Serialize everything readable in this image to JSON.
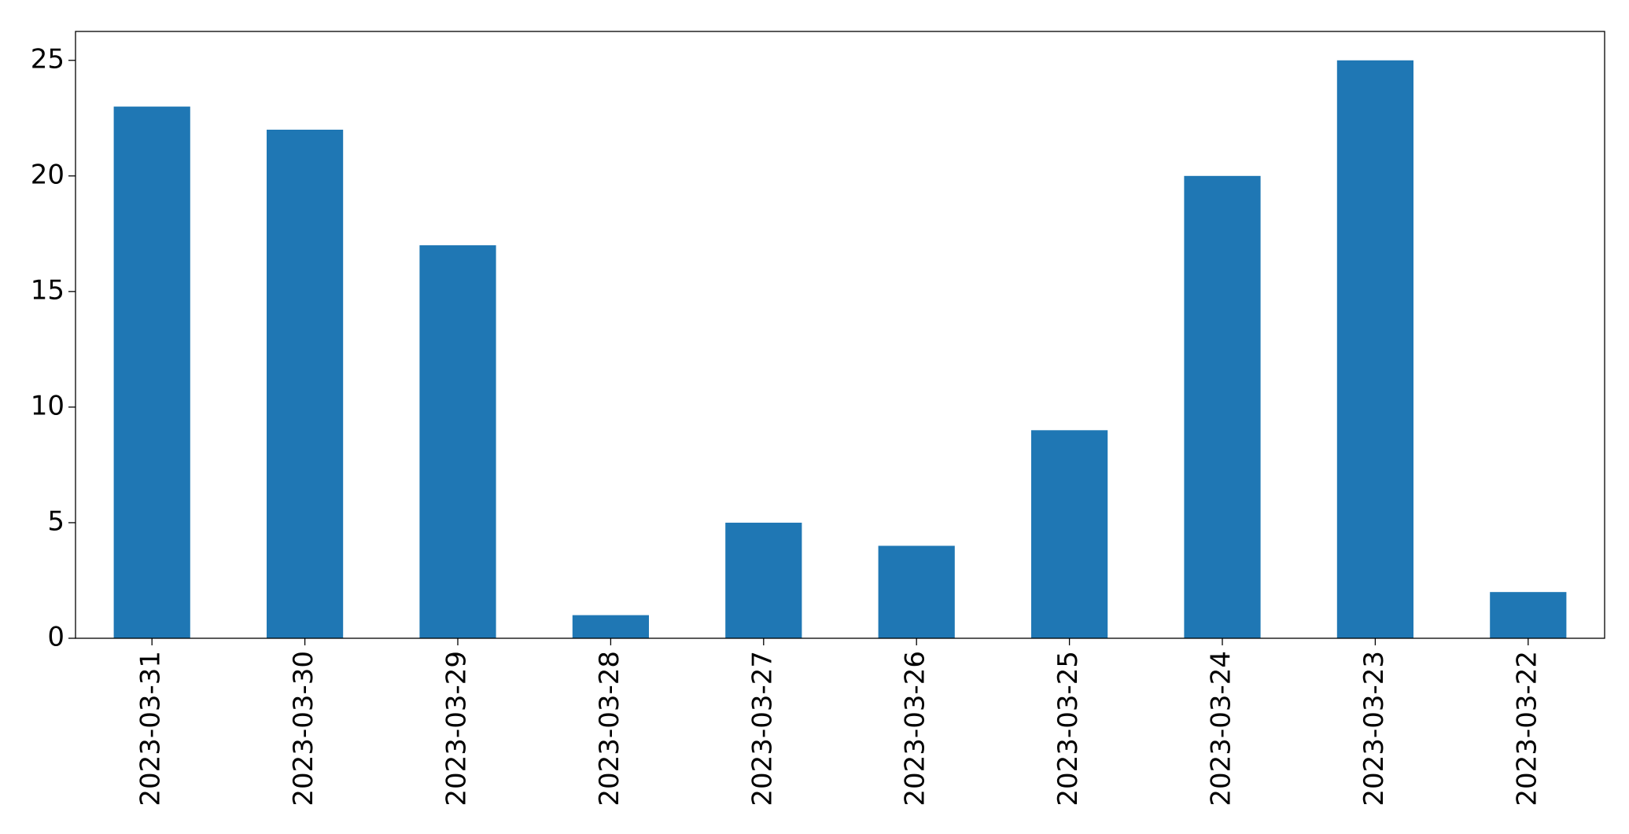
{
  "chart_data": {
    "type": "bar",
    "categories": [
      "2023-03-31",
      "2023-03-30",
      "2023-03-29",
      "2023-03-28",
      "2023-03-27",
      "2023-03-26",
      "2023-03-25",
      "2023-03-24",
      "2023-03-23",
      "2023-03-22"
    ],
    "values": [
      23,
      22,
      17,
      1,
      5,
      4,
      9,
      20,
      25,
      2
    ],
    "color": "#1f77b4",
    "ylim": [
      0,
      26.25
    ],
    "yticks": [
      0,
      5,
      10,
      15,
      20,
      25
    ],
    "grid": false
  }
}
